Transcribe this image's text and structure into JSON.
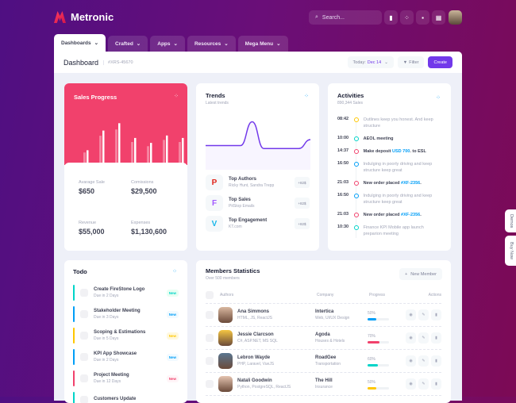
{
  "brand": "Metronic",
  "search": {
    "placeholder": "Search..."
  },
  "toolbar_icons": [
    "chart-bar-icon",
    "share-icon",
    "chat-icon",
    "apps-icon"
  ],
  "tabs": [
    {
      "label": "Dashboards"
    },
    {
      "label": "Crafted"
    },
    {
      "label": "Apps"
    },
    {
      "label": "Resources"
    },
    {
      "label": "Mega Menu"
    }
  ],
  "header": {
    "title": "Dashboard",
    "id": "#XRS-45670",
    "date_label": "Today:",
    "date_value": "Dec 14",
    "filter": "Filter",
    "create": "Create"
  },
  "sales": {
    "title": "Sales Progress",
    "bars": [
      30,
      70,
      85,
      55,
      45,
      60,
      55
    ],
    "stats": [
      {
        "label": "Avarage Sale",
        "value": "$650"
      },
      {
        "label": "Comissions",
        "value": "$29,500"
      },
      {
        "label": "Revenue",
        "value": "$55,000"
      },
      {
        "label": "Expenses",
        "value": "$1,130,600"
      }
    ]
  },
  "trends": {
    "title": "Trends",
    "subtitle": "Latest trends",
    "line": [
      30,
      30,
      30,
      30,
      70,
      25,
      25,
      25,
      25,
      40
    ],
    "items": [
      {
        "name": "Top Authors",
        "sub": "Ricky Hunt, Sandra Trepp",
        "badge": "+82$",
        "icon": "pinterest-icon",
        "color": "#e1251b",
        "glyph": "P"
      },
      {
        "name": "Top Sales",
        "sub": "PitStop Emails",
        "badge": "+82$",
        "icon": "figma-icon",
        "color": "#a259ff",
        "glyph": "F"
      },
      {
        "name": "Top Engagement",
        "sub": "KT.com",
        "badge": "+82$",
        "icon": "vimeo-icon",
        "color": "#1ab7ea",
        "glyph": "V"
      }
    ]
  },
  "activities": {
    "title": "Activities",
    "subtitle": "890,344 Sales",
    "items": [
      {
        "time": "08:42",
        "color": "#ffc700",
        "text": "Outlines keep you honest. And keep structure",
        "muted": true
      },
      {
        "time": "10:00",
        "color": "#00d4c8",
        "text": "AEOL meeting",
        "muted": false
      },
      {
        "time": "14:37",
        "color": "#f1416c",
        "text": "Make deposit ",
        "link": "USD 700",
        "after": ". to ESL",
        "muted": false
      },
      {
        "time": "16:50",
        "color": "#009ef7",
        "text": "Indulging in poorly driving and keep structure keep great",
        "muted": true
      },
      {
        "time": "21:03",
        "color": "#f1416c",
        "text": "New order placed ",
        "link": "#XF-2356",
        "after": ".",
        "muted": false
      },
      {
        "time": "16:50",
        "color": "#009ef7",
        "text": "Indulging in poorly driving and keep structure keep great",
        "muted": true
      },
      {
        "time": "21:03",
        "color": "#f1416c",
        "text": "New order placed ",
        "link": "#XF-2356",
        "after": ".",
        "muted": false
      },
      {
        "time": "10:30",
        "color": "#00d4c8",
        "text": "Finance KPI Mobile app launch preparion meeting",
        "muted": true
      }
    ]
  },
  "todo": {
    "title": "Todo",
    "items": [
      {
        "title": "Create FireStone Logo",
        "due": "Due in 2 Days",
        "badge": "New",
        "color": "#00d4c8",
        "bg": "#e8fff3"
      },
      {
        "title": "Stakeholder Meeting",
        "due": "Due in 3 Days",
        "badge": "New",
        "color": "#009ef7",
        "bg": "#f1faff"
      },
      {
        "title": "Scoping & Estimations",
        "due": "Due in 5 Days",
        "badge": "New",
        "color": "#ffc700",
        "bg": "#fff8dd"
      },
      {
        "title": "KPI App Showcase",
        "due": "Due in 2 Days",
        "badge": "New",
        "color": "#009ef7",
        "bg": "#f1faff"
      },
      {
        "title": "Project Meeting",
        "due": "Due in 12 Days",
        "badge": "New",
        "color": "#f1416c",
        "bg": "#fff5f8"
      },
      {
        "title": "Customers Update",
        "due": "",
        "badge": "",
        "color": "#00d4c8",
        "bg": "#e8fff3"
      }
    ]
  },
  "members": {
    "title": "Members Statistics",
    "subtitle": "Over 500 members",
    "new_member": "New Member",
    "columns": [
      "Authors",
      "Company",
      "Progress",
      "Actions"
    ],
    "rows": [
      {
        "name": "Ana Simmons",
        "skills": "HTML, JS, ReactJS",
        "company": "Intertica",
        "dept": "Web, UI/UX Design",
        "progress": "50%",
        "pct": 50,
        "color": "#009ef7",
        "avatar": "#d9b8a0"
      },
      {
        "name": "Jessie Clarcson",
        "skills": "C#, ASP.NET, MS SQL",
        "company": "Agoda",
        "dept": "Houses & Hotels",
        "progress": "70%",
        "pct": 70,
        "color": "#f1416c",
        "avatar": "#f4c542"
      },
      {
        "name": "Lebron Wayde",
        "skills": "PHP, Laravel, VueJS",
        "company": "RoadGee",
        "dept": "Transportation",
        "progress": "60%",
        "pct": 60,
        "color": "#00d4c8",
        "avatar": "#5a7690"
      },
      {
        "name": "Natali Goodwin",
        "skills": "Python, PostgreSQL, ReactJS",
        "company": "The Hill",
        "dept": "Insurance",
        "progress": "50%",
        "pct": 50,
        "color": "#ffc700",
        "avatar": "#e4c3b0"
      }
    ]
  },
  "side_tabs": [
    "Demos",
    "Buy Now"
  ]
}
